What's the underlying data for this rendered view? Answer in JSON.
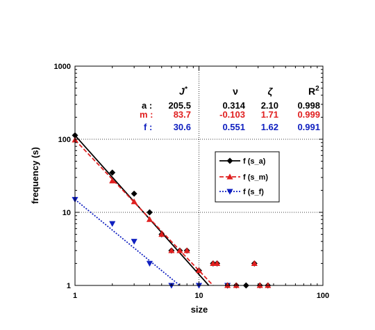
{
  "chart_data": {
    "type": "scatter",
    "xlabel": "size",
    "ylabel": "frequency (s)",
    "x_scale": "log",
    "y_scale": "log",
    "xlim": [
      1,
      100
    ],
    "ylim": [
      1,
      1000
    ],
    "x_ticks": [
      "1",
      "10",
      "100"
    ],
    "y_ticks": [
      "1",
      "10",
      "100",
      "1000"
    ],
    "grid": "dotted at decades",
    "legend_position": "center-right",
    "series": [
      {
        "name": "f (s_a)",
        "color": "#000000",
        "marker": "diamond",
        "line": "solid",
        "points": [
          [
            1,
            113
          ],
          [
            2,
            35
          ],
          [
            3,
            18
          ],
          [
            4,
            10
          ],
          [
            5,
            5
          ],
          [
            6,
            3
          ],
          [
            7,
            3
          ],
          [
            8,
            3
          ],
          [
            10,
            1.6
          ],
          [
            13,
            2
          ],
          [
            14,
            2
          ],
          [
            17,
            1
          ],
          [
            20,
            1
          ],
          [
            24,
            1
          ],
          [
            28,
            2
          ],
          [
            31,
            1
          ],
          [
            36,
            1
          ]
        ],
        "fit": {
          "x": [
            1,
            12
          ],
          "y": [
            113,
            1
          ]
        }
      },
      {
        "name": "f (s_m)",
        "color": "#e02020",
        "marker": "triangle-up",
        "line": "dashed",
        "points": [
          [
            1,
            98
          ],
          [
            2,
            27
          ],
          [
            3,
            14
          ],
          [
            4,
            8
          ],
          [
            5,
            5
          ],
          [
            6,
            3
          ],
          [
            7,
            3
          ],
          [
            8,
            3
          ],
          [
            10,
            1.6
          ],
          [
            13,
            2
          ],
          [
            14,
            2
          ],
          [
            17,
            1
          ],
          [
            20,
            1
          ],
          [
            28,
            2
          ],
          [
            31,
            1
          ],
          [
            36,
            1
          ]
        ],
        "fit": {
          "x": [
            1,
            13
          ],
          "y": [
            98,
            1
          ]
        }
      },
      {
        "name": "f (s_f)",
        "color": "#1020c0",
        "marker": "triangle-down",
        "line": "dotted",
        "points": [
          [
            1,
            15
          ],
          [
            2,
            7
          ],
          [
            3,
            4
          ],
          [
            4,
            2
          ],
          [
            6,
            1
          ],
          [
            10,
            1
          ],
          [
            17,
            1
          ]
        ],
        "fit": {
          "x": [
            1,
            7
          ],
          "y": [
            15,
            1
          ]
        }
      }
    ]
  },
  "table": {
    "headers": {
      "j": "J",
      "j_sup": "*",
      "nu": "ν",
      "zeta": "ζ",
      "r": "R",
      "r_sup": "2"
    },
    "rows": [
      {
        "key": "a :",
        "j": "205.5",
        "nu": "0.314",
        "zeta": "2.10",
        "r2": "0.998",
        "color": "#000000"
      },
      {
        "key": "m :",
        "j": "83.7",
        "nu": "-0.103",
        "zeta": "1.71",
        "r2": "0.999",
        "color": "#e02020"
      },
      {
        "key": "f :",
        "j": "30.6",
        "nu": "0.551",
        "zeta": "1.62",
        "r2": "0.991",
        "color": "#1020c0"
      }
    ]
  }
}
